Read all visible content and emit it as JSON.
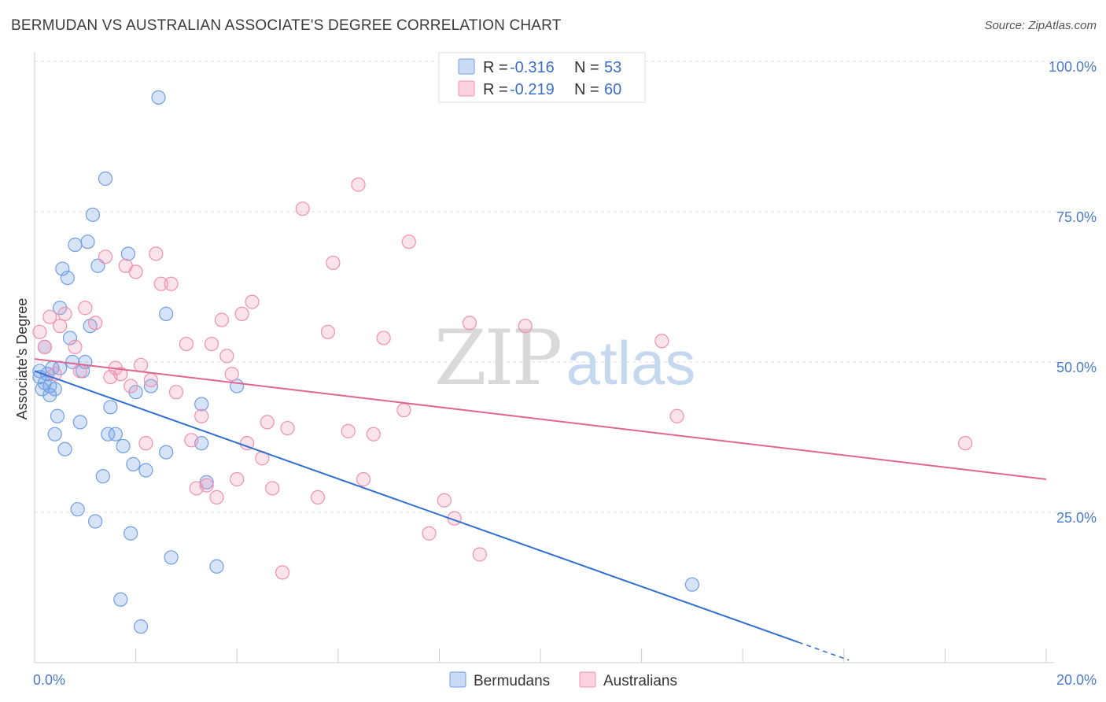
{
  "title": "BERMUDAN VS AUSTRALIAN ASSOCIATE'S DEGREE CORRELATION CHART",
  "source": "Source: ZipAtlas.com",
  "watermark": {
    "zip": "ZIP",
    "atlas": "atlas"
  },
  "chart_data": {
    "type": "scatter",
    "ylabel": "Associate's Degree",
    "xlim": [
      0,
      20
    ],
    "ylim": [
      0,
      100
    ],
    "x_ticks": [
      {
        "value": 0,
        "label": "0.0%"
      },
      {
        "value": 20,
        "label": "20.0%"
      }
    ],
    "y_ticks": [
      {
        "value": 25,
        "label": "25.0%"
      },
      {
        "value": 50,
        "label": "50.0%"
      },
      {
        "value": 75,
        "label": "75.0%"
      },
      {
        "value": 100,
        "label": "100.0%"
      }
    ],
    "grid": true,
    "legend_placement": "top-center",
    "series": [
      {
        "name": "Bermudans",
        "color": "#6f9ee3",
        "line_color": "#2f6fd0",
        "stats": {
          "r_label": "R = ",
          "r_value": "-0.316",
          "n_label": "N = ",
          "n_value": "53"
        },
        "trend": {
          "x0": 0,
          "y0": 48.5,
          "x1": 15.1,
          "y1": 3.4,
          "dash_to_x": 16.1
        },
        "points": [
          [
            0.1,
            47.5
          ],
          [
            0.1,
            48.5
          ],
          [
            0.15,
            45.5
          ],
          [
            0.2,
            46.5
          ],
          [
            0.2,
            52.5
          ],
          [
            0.25,
            48.0
          ],
          [
            0.3,
            44.5
          ],
          [
            0.3,
            46.0
          ],
          [
            0.35,
            49.0
          ],
          [
            0.4,
            45.5
          ],
          [
            0.4,
            38.0
          ],
          [
            0.45,
            41.0
          ],
          [
            0.5,
            49.0
          ],
          [
            0.5,
            59.0
          ],
          [
            0.55,
            65.5
          ],
          [
            0.6,
            35.5
          ],
          [
            0.65,
            64.0
          ],
          [
            0.7,
            54.0
          ],
          [
            0.75,
            50.0
          ],
          [
            0.8,
            69.5
          ],
          [
            0.85,
            25.5
          ],
          [
            0.9,
            40.0
          ],
          [
            0.95,
            48.5
          ],
          [
            1.0,
            50.0
          ],
          [
            1.05,
            70.0
          ],
          [
            1.1,
            56.0
          ],
          [
            1.15,
            74.5
          ],
          [
            1.2,
            23.5
          ],
          [
            1.25,
            66.0
          ],
          [
            1.35,
            31.0
          ],
          [
            1.4,
            80.5
          ],
          [
            1.45,
            38.0
          ],
          [
            1.5,
            42.5
          ],
          [
            1.6,
            38.0
          ],
          [
            1.7,
            10.5
          ],
          [
            1.75,
            36.0
          ],
          [
            1.85,
            68.0
          ],
          [
            1.9,
            21.5
          ],
          [
            1.95,
            33.0
          ],
          [
            2.0,
            45.0
          ],
          [
            2.1,
            6.0
          ],
          [
            2.2,
            32.0
          ],
          [
            2.3,
            46.0
          ],
          [
            2.45,
            94.0
          ],
          [
            2.6,
            58.0
          ],
          [
            2.6,
            35.0
          ],
          [
            2.7,
            17.5
          ],
          [
            3.3,
            43.0
          ],
          [
            3.3,
            36.5
          ],
          [
            3.4,
            30.0
          ],
          [
            3.6,
            16.0
          ],
          [
            4.0,
            46.0
          ],
          [
            13.0,
            13.0
          ]
        ]
      },
      {
        "name": "Australians",
        "color": "#f08fb0",
        "line_color": "#e0668f",
        "stats": {
          "r_label": "R = ",
          "r_value": "-0.219",
          "n_label": "N = ",
          "n_value": "60"
        },
        "trend": {
          "x0": 0,
          "y0": 50.5,
          "x1": 20,
          "y1": 30.5
        },
        "points": [
          [
            0.1,
            55.0
          ],
          [
            0.2,
            52.5
          ],
          [
            0.3,
            57.5
          ],
          [
            0.4,
            48.0
          ],
          [
            0.5,
            56.0
          ],
          [
            0.6,
            58.0
          ],
          [
            0.8,
            52.5
          ],
          [
            0.9,
            48.5
          ],
          [
            1.0,
            59.0
          ],
          [
            1.2,
            56.5
          ],
          [
            1.4,
            67.5
          ],
          [
            1.5,
            47.5
          ],
          [
            1.6,
            49.0
          ],
          [
            1.7,
            48.0
          ],
          [
            1.8,
            66.0
          ],
          [
            1.9,
            46.0
          ],
          [
            2.0,
            65.0
          ],
          [
            2.1,
            49.5
          ],
          [
            2.2,
            36.5
          ],
          [
            2.3,
            47.0
          ],
          [
            2.4,
            68.0
          ],
          [
            2.5,
            63.0
          ],
          [
            2.7,
            63.0
          ],
          [
            2.8,
            45.0
          ],
          [
            3.0,
            53.0
          ],
          [
            3.1,
            37.0
          ],
          [
            3.2,
            29.0
          ],
          [
            3.3,
            41.0
          ],
          [
            3.4,
            29.5
          ],
          [
            3.5,
            53.0
          ],
          [
            3.6,
            27.5
          ],
          [
            3.7,
            57.0
          ],
          [
            3.8,
            51.0
          ],
          [
            3.9,
            48.0
          ],
          [
            4.0,
            30.5
          ],
          [
            4.1,
            58.0
          ],
          [
            4.2,
            36.5
          ],
          [
            4.3,
            60.0
          ],
          [
            4.5,
            34.0
          ],
          [
            4.6,
            40.0
          ],
          [
            4.7,
            29.0
          ],
          [
            4.9,
            15.0
          ],
          [
            5.0,
            39.0
          ],
          [
            5.3,
            75.5
          ],
          [
            5.6,
            27.5
          ],
          [
            5.8,
            55.0
          ],
          [
            5.9,
            66.5
          ],
          [
            6.2,
            38.5
          ],
          [
            6.4,
            79.5
          ],
          [
            6.5,
            30.5
          ],
          [
            6.7,
            38.0
          ],
          [
            6.9,
            54.0
          ],
          [
            7.3,
            42.0
          ],
          [
            7.4,
            70.0
          ],
          [
            7.8,
            21.5
          ],
          [
            8.1,
            27.0
          ],
          [
            8.3,
            24.0
          ],
          [
            8.6,
            56.5
          ],
          [
            8.8,
            18.0
          ],
          [
            9.7,
            56.0
          ],
          [
            12.4,
            53.5
          ],
          [
            12.7,
            41.0
          ],
          [
            18.4,
            36.5
          ]
        ]
      }
    ]
  }
}
